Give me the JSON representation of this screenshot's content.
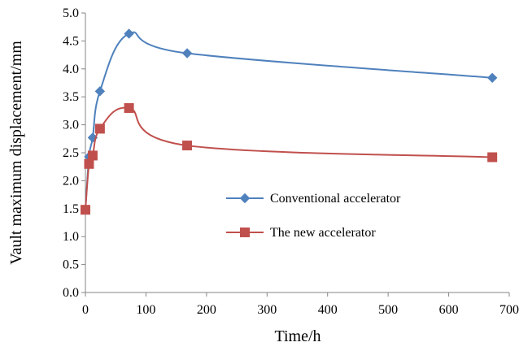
{
  "chart_data": {
    "type": "line",
    "title": "",
    "xlabel": "Time/h",
    "ylabel": "Vault maximum  displacement/mm",
    "xlim": [
      0,
      700
    ],
    "ylim": [
      0,
      5
    ],
    "x_ticks": [
      "0",
      "100",
      "200",
      "300",
      "400",
      "500",
      "600",
      "700"
    ],
    "y_ticks": [
      "0.0",
      "0.5",
      "1.0",
      "1.5",
      "2.0",
      "2.5",
      "3.0",
      "3.5",
      "4.0",
      "4.5",
      "5.0"
    ],
    "grid": false,
    "legend_position": "center-right",
    "series": [
      {
        "name": "Conventional accelerator",
        "color": "#4f81bd",
        "marker": "diamond",
        "x": [
          0,
          6,
          12,
          24,
          72,
          168,
          672
        ],
        "y": [
          1.48,
          2.43,
          2.77,
          3.6,
          4.63,
          4.28,
          3.84
        ]
      },
      {
        "name": "The new accelerator",
        "color": "#c0504d",
        "marker": "square",
        "x": [
          0,
          6,
          12,
          24,
          72,
          168,
          672
        ],
        "y": [
          1.48,
          2.3,
          2.45,
          2.93,
          3.3,
          2.63,
          2.42
        ]
      }
    ]
  }
}
